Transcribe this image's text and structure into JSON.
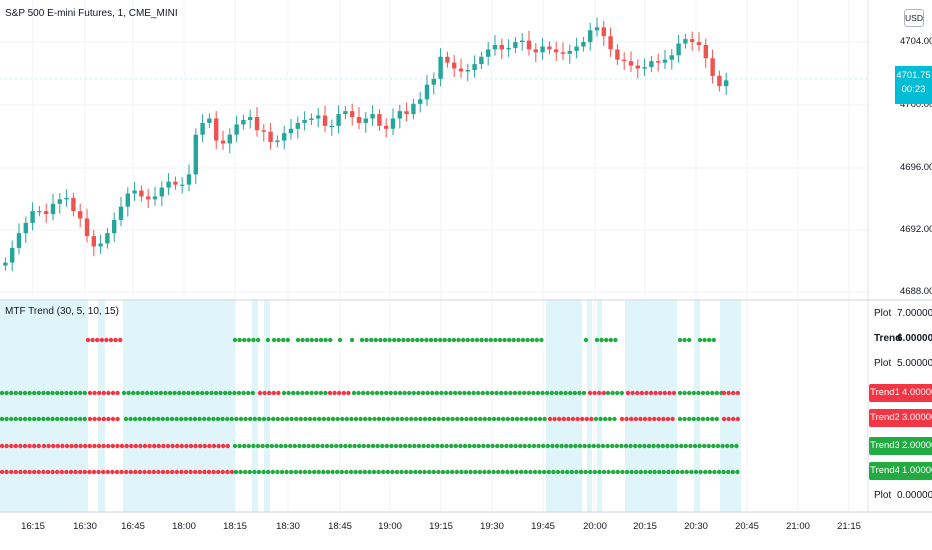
{
  "header": {
    "symbol_title": "S&P 500 E-mini Futures, 1, CME_MINI",
    "currency": "USD"
  },
  "price_axis": {
    "ticks": [
      "4704.00",
      "4700.00",
      "4696.00",
      "4692.00",
      "4688.00"
    ],
    "last_price": "4701.75",
    "countdown": "00:23"
  },
  "indicator": {
    "title": "MTF Trend (30, 5, 10, 15)",
    "plain_rows": [
      {
        "label": "Plot",
        "value": "7.000000"
      },
      {
        "label": "Trend",
        "value": "6.000000"
      },
      {
        "label": "Plot",
        "value": "5.000000"
      },
      {
        "label": "Plot",
        "value": "0.000000"
      }
    ],
    "trend_rows": [
      {
        "label": "Trend1",
        "value": "4.000000",
        "color": "#f23645"
      },
      {
        "label": "Trend2",
        "value": "3.000000",
        "color": "#f23645"
      },
      {
        "label": "Trend3",
        "value": "2.000000",
        "color": "#22ab40"
      },
      {
        "label": "Trend4",
        "value": "1.000000",
        "color": "#22ab40"
      }
    ]
  },
  "time_axis": [
    "16:15",
    "16:30",
    "16:45",
    "18:00",
    "18:15",
    "18:30",
    "18:45",
    "19:00",
    "19:15",
    "19:30",
    "19:45",
    "20:00",
    "20:15",
    "20:30",
    "20:45",
    "21:00",
    "21:15"
  ],
  "colors": {
    "up": "#26a69a",
    "down": "#ef5350",
    "dot_green": "#22ab40",
    "dot_red": "#f23645",
    "highlight": "#d9f4f8",
    "price_tag": "#00bcd4"
  },
  "chart_data": {
    "type": "candlestick",
    "y_range": [
      4687.5,
      4706
    ],
    "last_price": 4701.75,
    "close_series": [
      4689.5,
      4690.5,
      4691.5,
      4692.2,
      4693.0,
      4693.0,
      4692.8,
      4693.5,
      4693.8,
      4693.9,
      4693.0,
      4692.5,
      4691.3,
      4690.6,
      4690.8,
      4691.5,
      4692.4,
      4693.3,
      4694.2,
      4694.4,
      4694.0,
      4693.8,
      4694.0,
      4694.6,
      4695.0,
      4694.8,
      4694.8,
      4695.5,
      4698.2,
      4699.0,
      4699.3,
      4697.8,
      4697.6,
      4698.2,
      4698.9,
      4699.2,
      4699.4,
      4698.5,
      4698.4,
      4697.7,
      4697.8,
      4698.3,
      4698.6,
      4699.0,
      4699.2,
      4699.3,
      4699.5,
      4698.8,
      4698.8,
      4699.6,
      4699.8,
      4699.4,
      4699.0,
      4699.3,
      4699.6,
      4698.8,
      4698.6,
      4699.3,
      4699.8,
      4699.6,
      4700.3,
      4700.6,
      4701.6,
      4702.0,
      4703.5,
      4703.1,
      4702.7,
      4702.5,
      4702.6,
      4703.0,
      4703.5,
      4704.0,
      4704.3,
      4704.0,
      4704.1,
      4704.5,
      4704.6,
      4704.0,
      4703.8,
      4704.2,
      4704.0,
      4703.8,
      4703.7,
      4703.9,
      4704.2,
      4704.5,
      4705.3,
      4705.5,
      4704.9,
      4704.0,
      4703.3,
      4703.2,
      4702.9,
      4702.7,
      4702.8,
      4703.2,
      4703.1,
      4703.3,
      4703.6,
      4704.4,
      4704.7,
      4704.5,
      4704.3,
      4703.4,
      4702.2,
      4701.5,
      4701.9
    ]
  }
}
